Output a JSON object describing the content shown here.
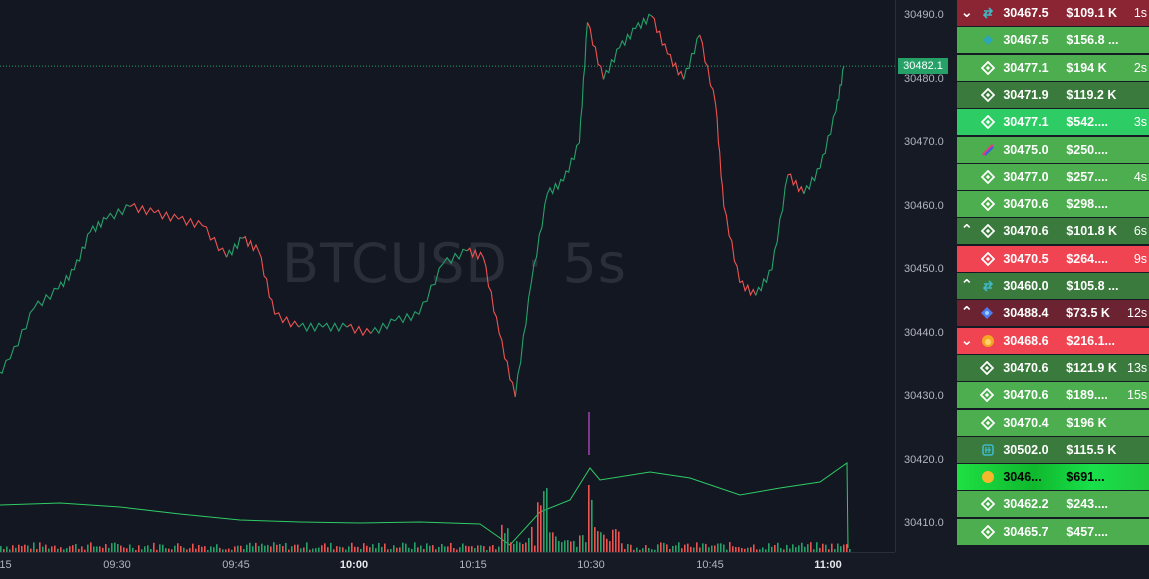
{
  "symbol_watermark": "BTCUSD · 5s",
  "current_price_label": "30482.1",
  "price_axis": [
    "30490.0",
    "30480.0",
    "30470.0",
    "30460.0",
    "30450.0",
    "30440.0",
    "30430.0",
    "30420.0",
    "30410.0"
  ],
  "time_axis": [
    {
      "label": ":15",
      "bold": false
    },
    {
      "label": "09:30",
      "bold": false
    },
    {
      "label": "09:45",
      "bold": false
    },
    {
      "label": "10:00",
      "bold": true
    },
    {
      "label": "10:15",
      "bold": false
    },
    {
      "label": "10:30",
      "bold": false
    },
    {
      "label": "10:45",
      "bold": false
    },
    {
      "label": "11:00",
      "bold": true
    }
  ],
  "colors": {
    "up": "#26a269",
    "down": "#ef5350",
    "line": "#2ecc65",
    "grid": "#2a2e39"
  },
  "trades": [
    {
      "arrow": "chevron-down",
      "icon": "arrow-swap-icon",
      "price": "30467.5",
      "amount": "$109.1 K",
      "age": "1s",
      "style": "c-dkred"
    },
    {
      "arrow": "",
      "icon": "exchange-teal-icon",
      "price": "30467.5",
      "amount": "$156.8 ...",
      "age": "",
      "style": "c-green"
    },
    {
      "arrow": "",
      "icon": "binance-icon",
      "price": "30477.1",
      "amount": "$194 K",
      "age": "2s",
      "style": "c-green"
    },
    {
      "arrow": "",
      "icon": "binance-icon",
      "price": "30471.9",
      "amount": "$119.2 K",
      "age": "",
      "style": "c-dkgreen"
    },
    {
      "arrow": "",
      "icon": "binance-icon",
      "price": "30477.1",
      "amount": "$542....",
      "age": "3s",
      "style": "c-bright"
    },
    {
      "arrow": "",
      "icon": "bybit-icon",
      "price": "30475.0",
      "amount": "$250....",
      "age": "",
      "style": "c-green"
    },
    {
      "arrow": "",
      "icon": "binance-icon",
      "price": "30477.0",
      "amount": "$257....",
      "age": "4s",
      "style": "c-green"
    },
    {
      "arrow": "",
      "icon": "binance-icon",
      "price": "30470.6",
      "amount": "$298....",
      "age": "",
      "style": "c-green"
    },
    {
      "arrow": "chevron-up",
      "icon": "binance-icon",
      "price": "30470.6",
      "amount": "$101.8 K",
      "age": "6s",
      "style": "c-dkgreen"
    },
    {
      "arrow": "",
      "icon": "binance-icon",
      "price": "30470.5",
      "amount": "$264....",
      "age": "9s",
      "style": "c-red"
    },
    {
      "arrow": "chevron-up",
      "icon": "arrow-swap-icon",
      "price": "30460.0",
      "amount": "$105.8 ...",
      "age": "",
      "style": "c-dkgreen"
    },
    {
      "arrow": "chevron-up",
      "icon": "diamond-blue-icon",
      "price": "30488.4",
      "amount": "$73.5 K",
      "age": "12s",
      "style": "c-maroon"
    },
    {
      "arrow": "chevron-down",
      "icon": "flame-orange-icon",
      "price": "30468.6",
      "amount": "$216.1...",
      "age": "",
      "style": "c-red"
    },
    {
      "arrow": "",
      "icon": "binance-icon",
      "price": "30470.6",
      "amount": "$121.9 K",
      "age": "13s",
      "style": "c-dkgreen"
    },
    {
      "arrow": "",
      "icon": "binance-icon",
      "price": "30470.6",
      "amount": "$189....",
      "age": "15s",
      "style": "c-green"
    },
    {
      "arrow": "",
      "icon": "binance-icon",
      "price": "30470.4",
      "amount": "$196 K",
      "age": "",
      "style": "c-green"
    },
    {
      "arrow": "",
      "icon": "bitcoin-cash-icon",
      "price": "30502.0",
      "amount": "$115.5 K",
      "age": "",
      "style": "c-dkgreen"
    },
    {
      "arrow": "",
      "icon": "coin-yellow-icon",
      "price": "3046...",
      "amount": "$691...",
      "age": "",
      "style": "c-neon"
    },
    {
      "arrow": "",
      "icon": "binance-icon",
      "price": "30462.2",
      "amount": "$243....",
      "age": "",
      "style": "c-green"
    },
    {
      "arrow": "",
      "icon": "binance-icon",
      "price": "30465.7",
      "amount": "$457....",
      "age": "",
      "style": "c-green"
    }
  ],
  "chart_data": {
    "type": "line",
    "title": "BTCUSD · 5s",
    "ylim": [
      30405,
      30492
    ],
    "x_ticks": [
      ":15",
      "09:30",
      "09:45",
      "10:00",
      "10:15",
      "10:30",
      "10:45",
      "11:00"
    ],
    "price_series": [
      [
        "09:15",
        30431
      ],
      [
        "09:18",
        30436
      ],
      [
        "09:21",
        30444
      ],
      [
        "09:24",
        30447
      ],
      [
        "09:26",
        30450
      ],
      [
        "09:28",
        30456
      ],
      [
        "09:30",
        30458
      ],
      [
        "09:33",
        30460
      ],
      [
        "09:36",
        30459
      ],
      [
        "09:39",
        30458
      ],
      [
        "09:42",
        30457
      ],
      [
        "09:45",
        30452
      ],
      [
        "09:47",
        30455
      ],
      [
        "09:49",
        30453
      ],
      [
        "09:51",
        30443
      ],
      [
        "09:54",
        30441
      ],
      [
        "09:57",
        30441
      ],
      [
        "10:00",
        30441
      ],
      [
        "10:03",
        30440
      ],
      [
        "10:06",
        30442
      ],
      [
        "10:09",
        30443
      ],
      [
        "10:12",
        30451
      ],
      [
        "10:15",
        30453
      ],
      [
        "10:17",
        30452
      ],
      [
        "10:19",
        30440
      ],
      [
        "10:21",
        30430
      ],
      [
        "10:23",
        30448
      ],
      [
        "10:25",
        30462
      ],
      [
        "10:27",
        30464
      ],
      [
        "10:29",
        30470
      ],
      [
        "10:30",
        30489
      ],
      [
        "10:32",
        30480
      ],
      [
        "10:34",
        30485
      ],
      [
        "10:36",
        30488
      ],
      [
        "10:38",
        30490
      ],
      [
        "10:40",
        30484
      ],
      [
        "10:42",
        30480
      ],
      [
        "10:44",
        30487
      ],
      [
        "10:46",
        30476
      ],
      [
        "10:47",
        30460
      ],
      [
        "10:49",
        30448
      ],
      [
        "10:51",
        30446
      ],
      [
        "10:53",
        30450
      ],
      [
        "10:55",
        30465
      ],
      [
        "10:57",
        30462
      ],
      [
        "10:59",
        30466
      ],
      [
        "11:01",
        30475
      ],
      [
        "11:02",
        30482.1
      ]
    ]
  }
}
